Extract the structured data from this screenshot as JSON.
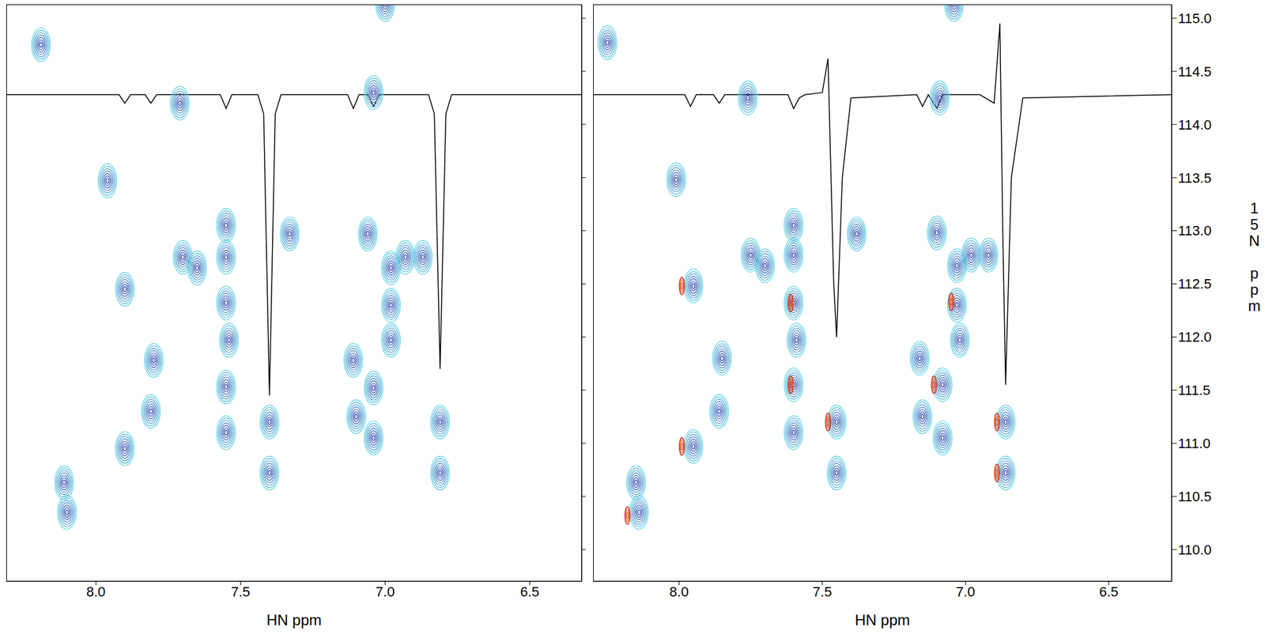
{
  "chart_data": [
    {
      "type": "scatter",
      "xlabel": "HN ppm",
      "tick_labels": "x",
      "xlim": [
        8.31,
        6.32
      ],
      "xticks": [
        {
          "value": 8,
          "label": "8.0"
        },
        7.5,
        {
          "value": 7,
          "label": "7.0"
        },
        6.5
      ],
      "ylim": [
        115.13,
        109.7
      ],
      "yticks": [
        {
          "value": 110,
          "label": "110.0"
        },
        110.5,
        {
          "value": 111,
          "label": "111.0"
        },
        111.5,
        {
          "value": 112,
          "label": "112.0"
        },
        112.5,
        {
          "value": 113,
          "label": "113.0"
        },
        113.5,
        {
          "value": 114,
          "label": "114.0"
        },
        114.5,
        {
          "value": 115,
          "label": "115.0"
        }
      ],
      "series": [
        {
          "type": "scatter",
          "marker": "contour",
          "color": "#1c2ea0",
          "x": [
            8.1,
            8.11,
            7.9,
            7.81,
            7.8,
            7.9,
            7.4,
            7.4,
            7.55,
            7.55,
            7.54,
            7.55,
            7.55,
            7.55,
            7.65,
            7.7,
            7.33,
            7.96,
            7.1,
            7.11,
            7.04,
            7.04,
            6.98,
            6.98,
            6.98,
            6.93,
            6.87,
            7.06,
            6.81,
            6.81,
            7.71,
            7.04,
            8.19,
            7.0
          ],
          "y": [
            110.35,
            110.63,
            110.95,
            111.3,
            111.78,
            112.45,
            110.72,
            111.2,
            111.1,
            111.53,
            111.97,
            112.32,
            112.75,
            113.05,
            112.65,
            112.75,
            112.97,
            113.47,
            111.25,
            111.78,
            111.05,
            111.52,
            111.97,
            112.3,
            112.65,
            112.75,
            112.75,
            112.97,
            110.72,
            111.2,
            114.2,
            114.3,
            114.75,
            115.13
          ]
        },
        {
          "type": "line",
          "color": "#000000",
          "x": [
            8.31,
            7.92,
            7.9,
            7.88,
            7.83,
            7.81,
            7.79,
            7.57,
            7.55,
            7.53,
            7.44,
            7.42,
            7.4,
            7.38,
            7.36,
            7.13,
            7.11,
            7.09,
            7.06,
            7.04,
            7.02,
            6.85,
            6.83,
            6.81,
            6.79,
            6.77,
            6.32
          ],
          "y": [
            114.28,
            114.28,
            114.2,
            114.28,
            114.28,
            114.2,
            114.28,
            114.28,
            114.15,
            114.28,
            114.28,
            114.1,
            111.45,
            114.1,
            114.28,
            114.28,
            114.15,
            114.28,
            114.28,
            114.17,
            114.28,
            114.28,
            114.1,
            111.7,
            114.1,
            114.28,
            114.28
          ]
        }
      ]
    },
    {
      "type": "scatter",
      "xlabel": "HN ppm",
      "ylabel": "15N ppm",
      "xlim": [
        8.3,
        6.28
      ],
      "xticks": [
        {
          "value": 8,
          "label": "8.0"
        },
        7.5,
        {
          "value": 7,
          "label": "7.0"
        },
        6.5
      ],
      "ylim": [
        115.13,
        109.7
      ],
      "yticks": [
        {
          "value": 110,
          "label": "110.0"
        },
        110.5,
        {
          "value": 111,
          "label": "111.0"
        },
        111.5,
        {
          "value": 112,
          "label": "112.0"
        },
        112.5,
        {
          "value": 113,
          "label": "113.0"
        },
        113.5,
        {
          "value": 114,
          "label": "114.0"
        },
        114.5,
        {
          "value": 115,
          "label": "115.0"
        }
      ],
      "series": [
        {
          "type": "scatter",
          "marker": "contour",
          "color": "#1c2ea0",
          "x": [
            8.14,
            8.15,
            7.95,
            7.86,
            7.85,
            7.95,
            7.45,
            7.45,
            7.6,
            7.6,
            7.59,
            7.6,
            7.6,
            7.6,
            7.7,
            7.75,
            7.38,
            8.01,
            7.15,
            7.16,
            7.08,
            7.08,
            7.02,
            7.03,
            7.03,
            6.98,
            6.92,
            7.1,
            6.86,
            6.86,
            7.76,
            7.09,
            8.25,
            7.04
          ],
          "y": [
            110.35,
            110.63,
            110.97,
            111.3,
            111.8,
            112.48,
            110.72,
            111.2,
            111.1,
            111.55,
            111.97,
            112.32,
            112.77,
            113.05,
            112.67,
            112.77,
            112.97,
            113.48,
            111.25,
            111.8,
            111.05,
            111.55,
            111.97,
            112.3,
            112.67,
            112.77,
            112.77,
            112.98,
            110.72,
            111.2,
            114.25,
            114.25,
            114.77,
            115.13
          ]
        },
        {
          "type": "scatter",
          "marker": "narrow",
          "color": "#d62718",
          "x": [
            8.18,
            7.99,
            7.99,
            7.48,
            7.61,
            7.61,
            7.11,
            7.05,
            6.89,
            6.89
          ],
          "y": [
            110.32,
            110.97,
            112.48,
            111.2,
            111.55,
            112.32,
            111.55,
            112.33,
            111.2,
            110.72
          ]
        },
        {
          "type": "line",
          "color": "#000000",
          "x": [
            8.3,
            7.98,
            7.96,
            7.94,
            7.88,
            7.86,
            7.84,
            7.62,
            7.6,
            7.58,
            7.56,
            7.5,
            7.48,
            7.46,
            7.45,
            7.43,
            7.4,
            7.17,
            7.15,
            7.13,
            7.1,
            7.08,
            6.95,
            6.9,
            6.88,
            6.87,
            6.86,
            6.84,
            6.8,
            6.28
          ],
          "y": [
            114.28,
            114.28,
            114.17,
            114.28,
            114.28,
            114.2,
            114.28,
            114.28,
            114.15,
            114.25,
            114.28,
            114.3,
            114.62,
            112.5,
            112.0,
            113.5,
            114.25,
            114.28,
            114.17,
            114.28,
            114.15,
            114.28,
            114.28,
            114.2,
            114.95,
            113.0,
            111.55,
            113.5,
            114.25,
            114.28
          ]
        }
      ]
    }
  ]
}
